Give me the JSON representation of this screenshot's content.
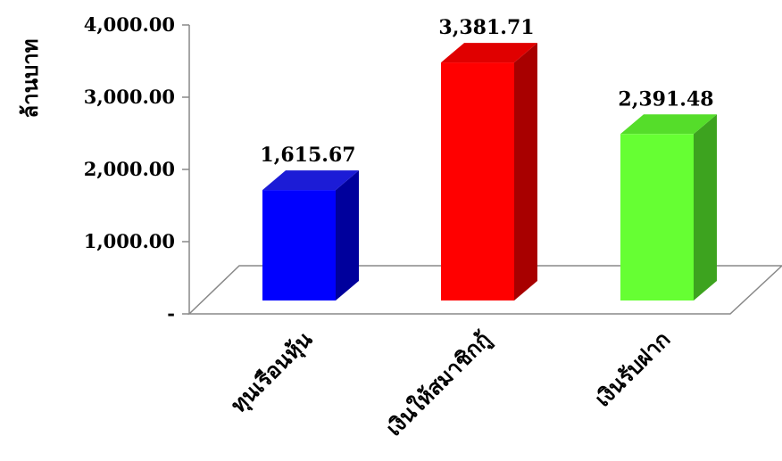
{
  "chart_data": {
    "type": "bar",
    "ylabel": "ล้านบาท",
    "ylim": [
      0,
      4000
    ],
    "yticks": [
      {
        "value": 0,
        "label": "-"
      },
      {
        "value": 1000,
        "label": "1,000.00"
      },
      {
        "value": 2000,
        "label": "2,000.00"
      },
      {
        "value": 3000,
        "label": "3,000.00"
      },
      {
        "value": 4000,
        "label": "4,000.00"
      }
    ],
    "categories": [
      "ทุนเรือนหุ้น",
      "เงินให้สมาชิกกู้",
      "เงินรับฝาก"
    ],
    "values": [
      1615.67,
      3381.71,
      2391.48
    ],
    "value_labels": [
      "1,615.67",
      "3,381.71",
      "2,391.48"
    ],
    "colors": [
      {
        "front": "#0000ff",
        "side": "#00009c",
        "top": "#1c1cd6"
      },
      {
        "front": "#ff0000",
        "side": "#a80000",
        "top": "#e00000"
      },
      {
        "front": "#66ff33",
        "side": "#3da31f",
        "top": "#55dd2a"
      }
    ],
    "grid": false,
    "legend": "none"
  }
}
